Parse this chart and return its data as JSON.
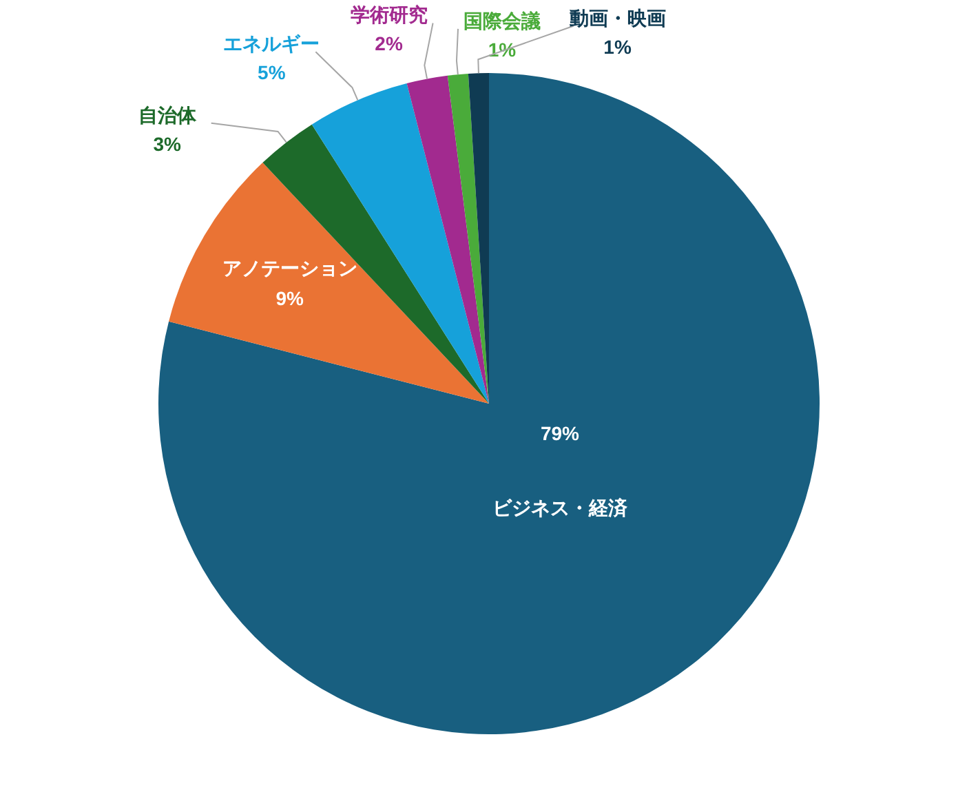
{
  "chart_data": {
    "type": "pie",
    "categories": [
      "ビジネス・経済",
      "アノテーション",
      "自治体",
      "エネルギー",
      "学術研究",
      "国際会議",
      "動画・映画"
    ],
    "values": [
      79,
      9,
      3,
      5,
      2,
      1,
      1
    ],
    "colors": [
      "#185f80",
      "#ea7334",
      "#1d6a2a",
      "#16a1da",
      "#a22a8f",
      "#4aab3a",
      "#0f3b53"
    ],
    "value_labels": [
      "79%",
      "9%",
      "3%",
      "5%",
      "2%",
      "1%",
      "1%"
    ]
  }
}
